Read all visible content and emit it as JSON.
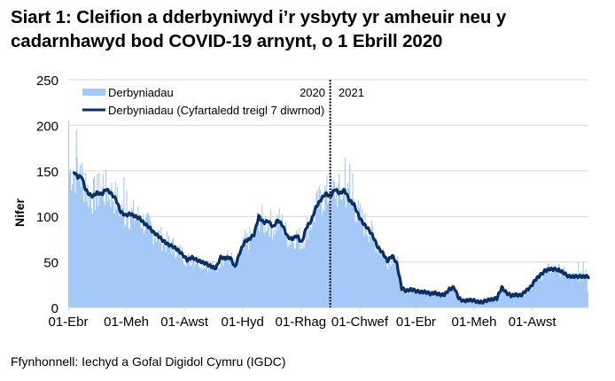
{
  "title": "Siart 1: Cleifion a dderbyniwyd i’r ysbyty yr amheuir neu y cadarnhawyd bod COVID-19 arnynt, o 1 Ebrill 2020",
  "source": "Ffynhonnell: Iechyd a Gofal Digidol Cymru (IGDC)",
  "colors": {
    "bars": "#a4c8f8",
    "line": "#0a2f66",
    "grid": "#d9d9d9",
    "divider": "#000000"
  },
  "chart_data": {
    "type": "bar",
    "title": "Siart 1: Cleifion a dderbyniwyd i’r ysbyty yr amheuir neu y cadarnhawyd bod COVID-19 arnynt, o 1 Ebrill 2020",
    "xlabel": "",
    "ylabel": "Nifer",
    "ylim": [
      0,
      250
    ],
    "yticks": [
      0,
      50,
      100,
      150,
      200,
      250
    ],
    "grid": true,
    "legend_position": "top-left inside",
    "xtick_labels": [
      "01-Ebr",
      "01-Meh",
      "01-Awst",
      "01-Hyd",
      "01-Rhag",
      "01-Chwef",
      "01-Ebr",
      "01-Meh",
      "01-Awst"
    ],
    "xtick_days": [
      0,
      61,
      122,
      183,
      244,
      306,
      365,
      426,
      487
    ],
    "year_divider": {
      "day": 275,
      "left_label": "2020",
      "right_label": "2021"
    },
    "x_range_days": [
      0,
      546
    ],
    "series": [
      {
        "name": "Derbyniadau",
        "type": "bar",
        "note": "daily admissions; approximated around the 7-day average with peaks ~205 (early Apr 2020) and ~165 (late Dec 2020)"
      },
      {
        "name": "Derbyniadau  (Cyfartaledd treigl 7 diwrnod)",
        "type": "line",
        "x_days": [
          6,
          10,
          14,
          18,
          22,
          26,
          30,
          35,
          40,
          45,
          50,
          55,
          60,
          65,
          70,
          75,
          80,
          85,
          90,
          95,
          100,
          105,
          110,
          115,
          120,
          125,
          130,
          135,
          140,
          145,
          150,
          155,
          160,
          165,
          170,
          175,
          180,
          185,
          190,
          195,
          200,
          205,
          210,
          215,
          220,
          225,
          230,
          235,
          240,
          245,
          250,
          255,
          260,
          265,
          270,
          275,
          280,
          285,
          290,
          295,
          300,
          305,
          310,
          315,
          320,
          325,
          330,
          335,
          340,
          345,
          350,
          355,
          360,
          365,
          370,
          375,
          380,
          385,
          390,
          395,
          400,
          405,
          410,
          415,
          420,
          425,
          430,
          435,
          440,
          445,
          450,
          455,
          460,
          465,
          470,
          475,
          480,
          485,
          490,
          495,
          500,
          505,
          510,
          515,
          520,
          525,
          530,
          535,
          540,
          546
        ],
        "values": [
          149,
          143,
          144,
          130,
          124,
          122,
          126,
          124,
          130,
          125,
          119,
          105,
          101,
          103,
          100,
          98,
          92,
          88,
          82,
          78,
          73,
          69,
          67,
          63,
          58,
          52,
          55,
          52,
          50,
          48,
          45,
          43,
          55,
          54,
          55,
          44,
          60,
          72,
          75,
          80,
          100,
          93,
          95,
          88,
          96,
          90,
          78,
          75,
          79,
          71,
          88,
          95,
          110,
          118,
          125,
          122,
          130,
          125,
          129,
          118,
          113,
          100,
          92,
          86,
          78,
          66,
          60,
          51,
          57,
          48,
          21,
          18,
          20,
          18,
          17,
          17,
          15,
          16,
          14,
          14,
          20,
          22,
          10,
          7,
          8,
          8,
          6,
          6,
          8,
          9,
          10,
          22,
          16,
          13,
          14,
          13,
          18,
          22,
          30,
          35,
          40,
          42,
          42,
          41,
          38,
          34,
          34,
          34,
          34,
          34
        ]
      }
    ]
  },
  "legend": {
    "bars_label": "Derbyniadau",
    "line_label": "Derbyniadau  (Cyfartaledd treigl 7 diwrnod)"
  },
  "axes": {
    "ylabel": "Nifer",
    "yticks": [
      "0",
      "50",
      "100",
      "150",
      "200",
      "250"
    ],
    "xticks": [
      "01-Ebr",
      "01-Meh",
      "01-Awst",
      "01-Hyd",
      "01-Rhag",
      "01-Chwef",
      "01-Ebr",
      "01-Meh",
      "01-Awst"
    ],
    "year_left": "2020",
    "year_right": "2021"
  }
}
